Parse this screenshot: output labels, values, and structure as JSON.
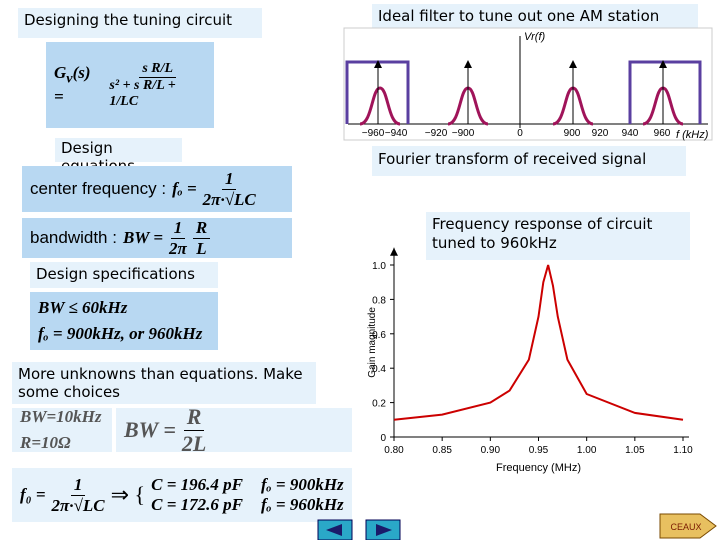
{
  "title": "Designing the tuning circuit",
  "transfer_function": {
    "lhs": "G",
    "sub": "v",
    "arg": "(s) =",
    "num": "s R/L",
    "den": "s² + s R/L + 1/LC"
  },
  "design_equations": {
    "heading": "Design equations",
    "center": {
      "label": "center frequency :",
      "lhs": "fₒ =",
      "num": "1",
      "den": "2π·√LC"
    },
    "bandwidth": {
      "label": "bandwidth :",
      "lhs": "BW =",
      "num1": "1",
      "den1": "2π",
      "num2": "R",
      "den2": "L"
    }
  },
  "design_specifications": {
    "heading": "Design specifications",
    "items": [
      "BW ≤ 60kHz",
      "fₒ = 900kHz,  or 960kHz"
    ]
  },
  "choices": {
    "heading": "More unknowns than equations. Make some choices",
    "givens": [
      "BW=10kHz",
      "R=10Ω"
    ],
    "relation": {
      "lhs": "BW =",
      "num": "R",
      "den": "2L"
    },
    "result": {
      "lhs": "f₀ =",
      "num": "1",
      "den": "2π·√LC",
      "cases": [
        [
          "C = 196.4 pF",
          "fₒ = 900kHz"
        ],
        [
          "C = 172.6 pF",
          "fₒ = 960kHz"
        ]
      ]
    }
  },
  "spectrum": {
    "caption": "Ideal filter to tune out one AM station",
    "ylabel": "Vr(f)",
    "xlabel": "f (kHz)",
    "ticks": [
      "−960",
      "−940",
      "−920",
      "−900",
      "0",
      "900",
      "920",
      "940",
      "960"
    ],
    "footer": "Fourier transform of received signal"
  },
  "response_plot": {
    "caption": "Frequency response of circuit tuned to 960kHz",
    "xlabel": "Frequency (MHz)",
    "ylabel": "Gain magnitude",
    "color": "#cc0000",
    "x": [
      0.8,
      0.85,
      0.9,
      0.92,
      0.94,
      0.95,
      0.955,
      0.96,
      0.965,
      0.97,
      0.98,
      1.0,
      1.05,
      1.1
    ],
    "values": [
      0.1,
      0.13,
      0.2,
      0.27,
      0.45,
      0.7,
      0.9,
      1.0,
      0.88,
      0.7,
      0.45,
      0.25,
      0.14,
      0.1
    ],
    "xlim": [
      0.8,
      1.1
    ],
    "ylim": [
      0,
      1.1
    ],
    "xticks": [
      {
        "value": 0.8,
        "label": "0.80"
      },
      {
        "value": 0.85,
        "label": "0.85"
      },
      {
        "value": 0.9,
        "label": "0.90"
      },
      {
        "value": 0.95,
        "label": "0.95"
      },
      {
        "value": 1,
        "label": "1.00"
      },
      {
        "value": 1.05,
        "label": "1.05"
      },
      {
        "value": 1.1,
        "label": "1.10"
      }
    ],
    "yticks": [
      0,
      0.2,
      0.4,
      0.6,
      0.8,
      {
        "value": 1,
        "label": "1.0"
      }
    ]
  },
  "logo": "CEAUX"
}
